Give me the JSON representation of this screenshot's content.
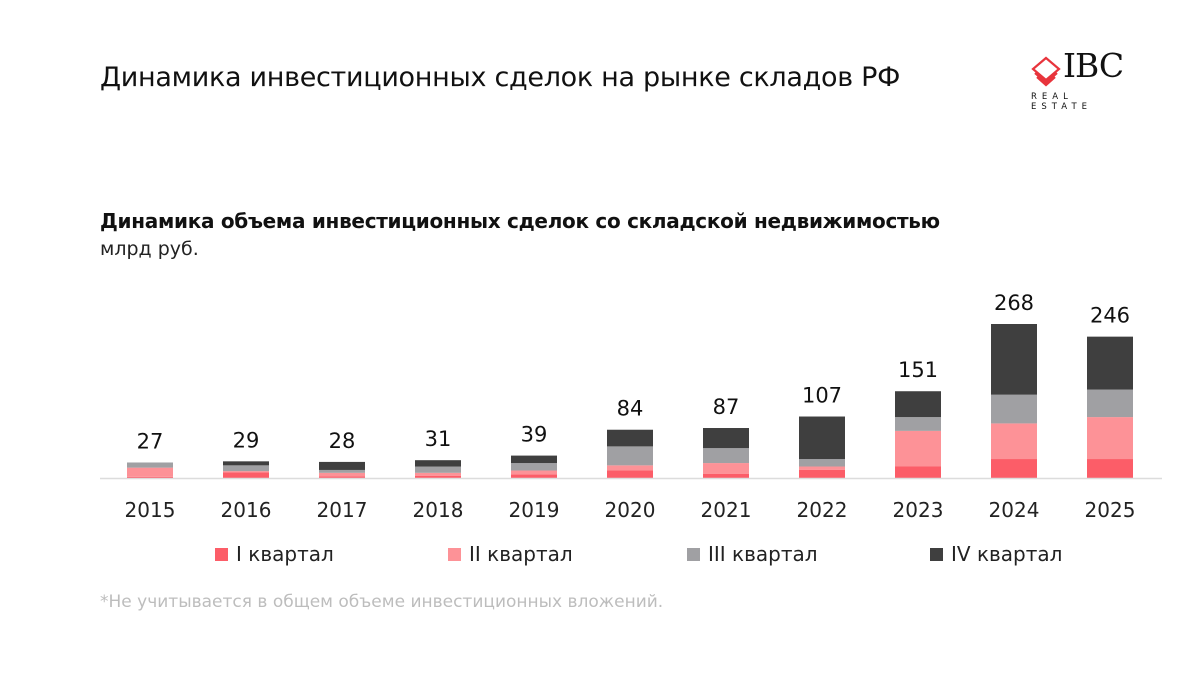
{
  "header": {
    "title": "Динамика инвестиционных сделок на рынке складов РФ"
  },
  "logo": {
    "word": "IBC",
    "sub": "REAL ESTATE",
    "accent": "#e8343c"
  },
  "footnote": "*Не учитывается в общем объеме инвестиционных вложений.",
  "chart_data": {
    "type": "bar",
    "stacked": true,
    "title": "Динамика объема инвестиционных сделок со складской недвижимостью",
    "subtitle": "млрд руб.",
    "categories": [
      "2015",
      "2016",
      "2017",
      "2018",
      "2019",
      "2020",
      "2021",
      "2022",
      "2023",
      "2024",
      "2025"
    ],
    "totals": [
      27,
      29,
      28,
      31,
      39,
      84,
      87,
      107,
      151,
      268,
      246
    ],
    "series": [
      {
        "name": "I квартал",
        "color": "#fc5d68",
        "values": [
          2,
          10,
          3,
          4,
          6,
          13,
          7,
          14,
          20,
          33,
          33
        ]
      },
      {
        "name": "II квартал",
        "color": "#fd9297",
        "values": [
          16,
          2,
          6,
          5,
          7,
          9,
          19,
          6,
          62,
          62,
          73
        ]
      },
      {
        "name": "III квартал",
        "color": "#a0a0a3",
        "values": [
          9,
          10,
          5,
          11,
          13,
          33,
          26,
          13,
          24,
          50,
          48
        ]
      },
      {
        "name": "IV квартал",
        "color": "#3f3f3f",
        "values": [
          0,
          7,
          14,
          11,
          13,
          29,
          35,
          74,
          45,
          123,
          92
        ]
      }
    ],
    "ylim": [
      0,
      280
    ],
    "grid": false,
    "legend": "bottom"
  }
}
